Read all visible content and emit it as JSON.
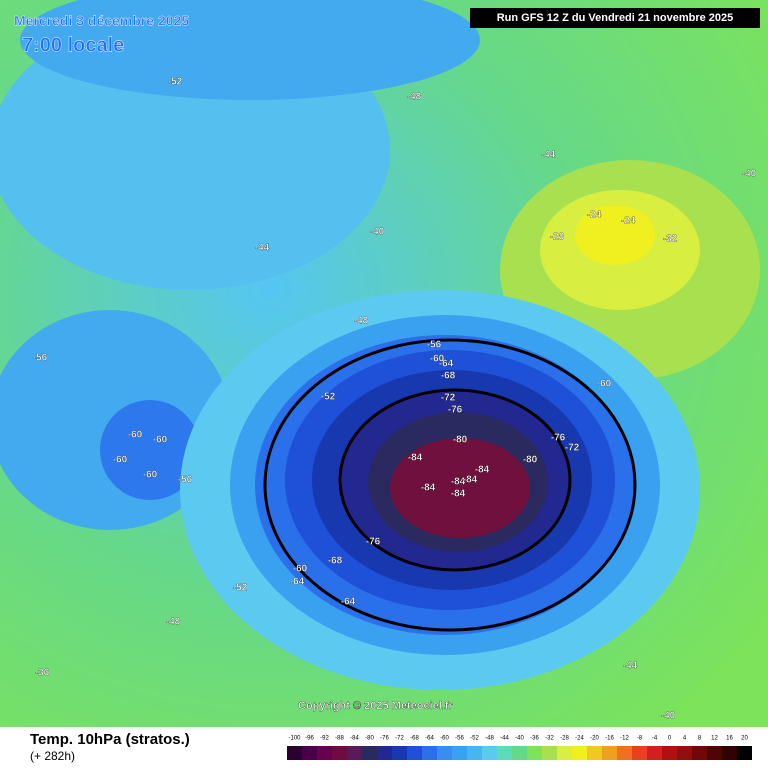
{
  "header": {
    "date": "Mercredi 3 décembre 2025",
    "time": "7:00 locale",
    "run": "Run GFS 12 Z du Vendredi 21 novembre 2025"
  },
  "footer": {
    "title": "Temp. 10hPa (stratos.)",
    "lead": "(+ 282h)",
    "copyright": "Copyright © 2025 Meteociel.fr"
  },
  "colorbar": {
    "ticks": [
      -100,
      -96,
      -92,
      -88,
      -84,
      -80,
      -76,
      -72,
      -68,
      -64,
      -60,
      -56,
      -52,
      -48,
      -44,
      -40,
      -36,
      -32,
      -28,
      -24,
      -20,
      -16,
      -12,
      -8,
      -4,
      0,
      4,
      8,
      12,
      16,
      20
    ]
  },
  "map_labels": [
    "-84",
    "-84",
    "-84",
    "-84",
    "-84",
    "-84",
    "-80",
    "-80",
    "-76",
    "-76",
    "-76",
    "-72",
    "-72",
    "-68",
    "-68",
    "-64",
    "-64",
    "-64",
    "-60",
    "-60",
    "-60",
    "-56",
    "-56",
    "-52",
    "-52",
    "-48",
    "-48",
    "-44",
    "-44",
    "-40",
    "-40",
    "-36",
    "-32",
    "-28",
    "-24",
    "-24",
    "-60",
    "-60",
    "-60",
    "-60",
    "-56",
    "-52",
    "-48",
    "-44",
    "-40"
  ]
}
